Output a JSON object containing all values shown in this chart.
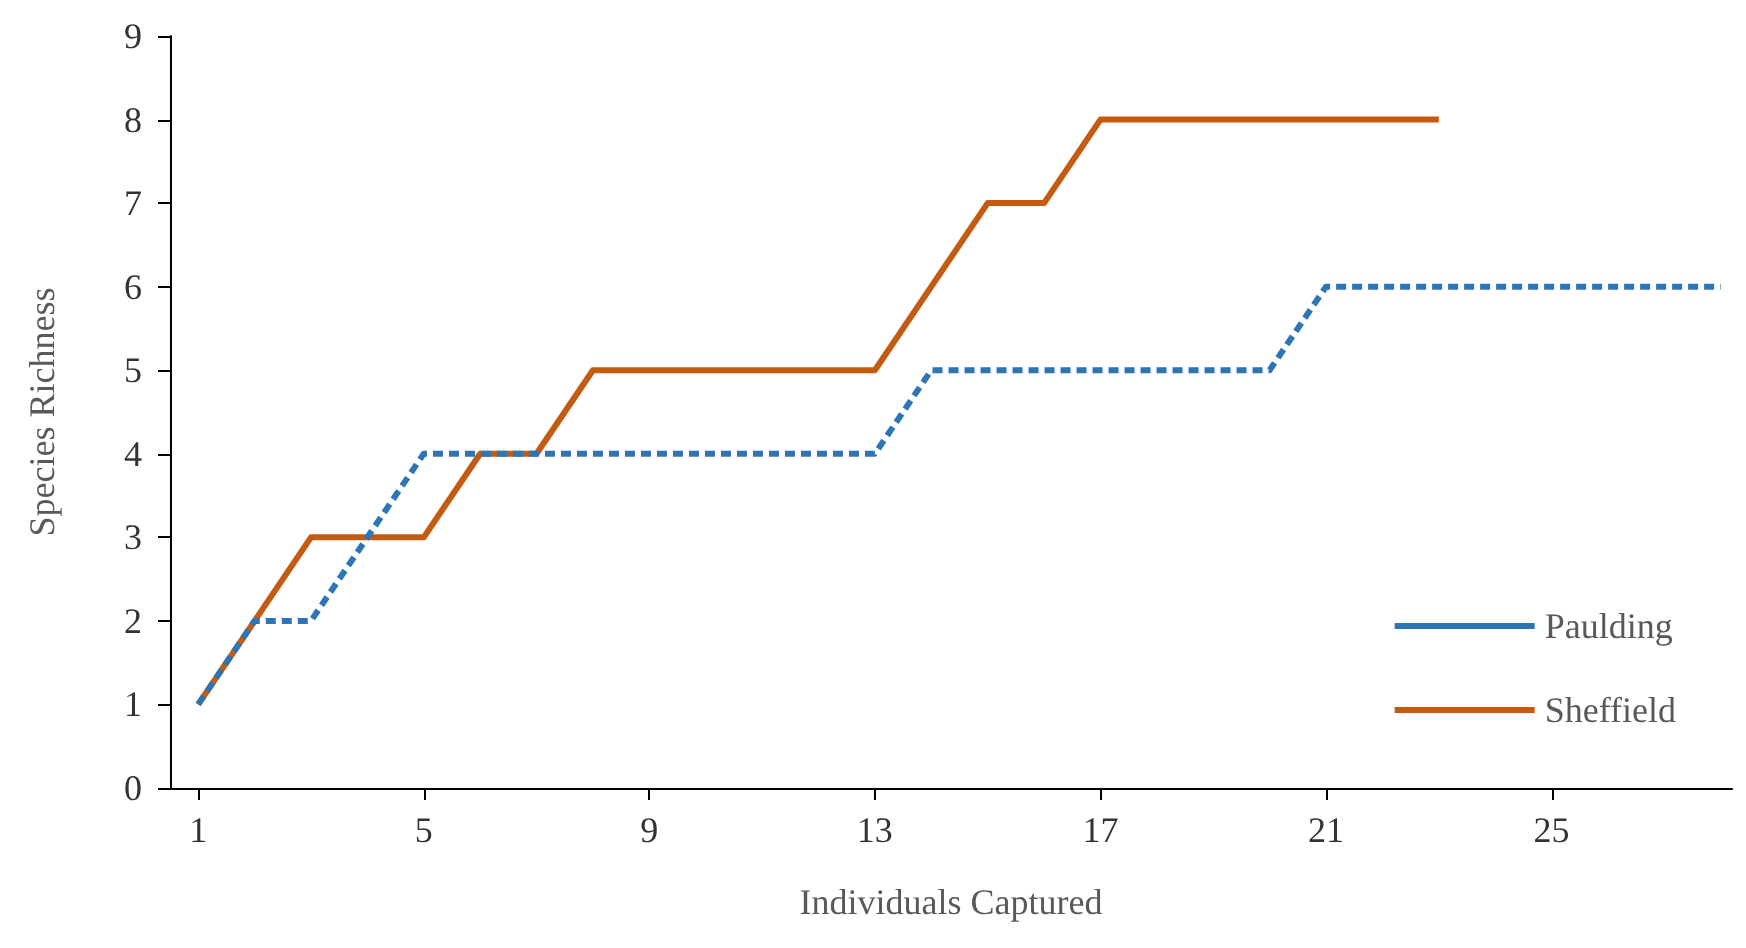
{
  "chart_data": {
    "type": "line",
    "xlabel": "Individuals Captured",
    "ylabel": "Species Richness",
    "xlim": [
      0.5,
      28.2
    ],
    "xticks": [
      1,
      5,
      9,
      13,
      17,
      21,
      25
    ],
    "ylim": [
      0,
      9
    ],
    "yticks": [
      0,
      1,
      2,
      3,
      4,
      5,
      6,
      7,
      8,
      9
    ],
    "grid": false,
    "legend": "bottom right",
    "marker": "none",
    "series": [
      {
        "name": "Paulding",
        "color": "#2e75b6",
        "line_style": "dashed",
        "x": [
          1,
          2,
          3,
          4,
          5,
          6,
          7,
          8,
          9,
          10,
          11,
          12,
          13,
          14,
          15,
          16,
          17,
          18,
          19,
          20,
          21,
          22,
          23,
          24,
          25,
          26,
          27,
          28
        ],
        "values": [
          1,
          2,
          2,
          3,
          4,
          4,
          4,
          4,
          4,
          4,
          4,
          4,
          4,
          5,
          5,
          5,
          5,
          5,
          5,
          5,
          6,
          6,
          6,
          6,
          6,
          6,
          6,
          6
        ]
      },
      {
        "name": "Sheffield",
        "color": "#c55a11",
        "line_style": "solid",
        "x": [
          1,
          2,
          3,
          4,
          5,
          6,
          7,
          8,
          9,
          10,
          11,
          12,
          13,
          14,
          15,
          16,
          17,
          18,
          19,
          20,
          21,
          22,
          23
        ],
        "values": [
          1,
          2,
          3,
          3,
          3,
          4,
          4,
          5,
          5,
          5,
          5,
          5,
          5,
          6,
          7,
          7,
          8,
          8,
          8,
          8,
          8,
          8,
          8
        ]
      }
    ]
  }
}
